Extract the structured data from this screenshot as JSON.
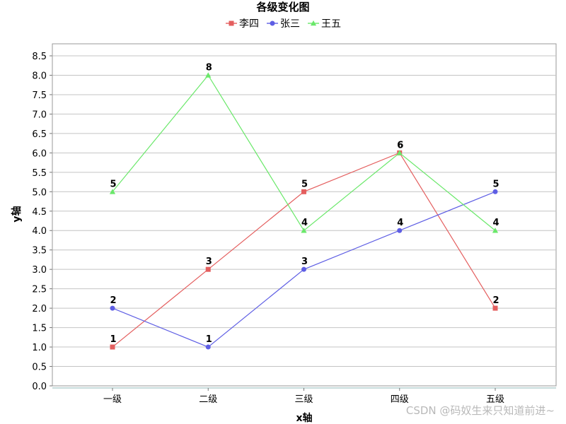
{
  "chart_data": {
    "type": "line",
    "title": "各级变化图",
    "xlabel": "x轴",
    "ylabel": "y轴",
    "categories": [
      "一级",
      "二级",
      "三级",
      "四级",
      "五级"
    ],
    "ylim": [
      0,
      8.5
    ],
    "ytick_step": 0.5,
    "grid": true,
    "legend_position": "top",
    "series": [
      {
        "name": "李四",
        "marker": "square",
        "color": "#e45e5e",
        "values": [
          1,
          3,
          5,
          6,
          2
        ]
      },
      {
        "name": "张三",
        "marker": "circle",
        "color": "#5e5ee4",
        "values": [
          2,
          1,
          3,
          4,
          5
        ]
      },
      {
        "name": "王五",
        "marker": "triangle",
        "color": "#6ae86a",
        "values": [
          5,
          8,
          4,
          6,
          4
        ]
      }
    ]
  },
  "watermark": "CSDN @码奴生来只知道前进~"
}
